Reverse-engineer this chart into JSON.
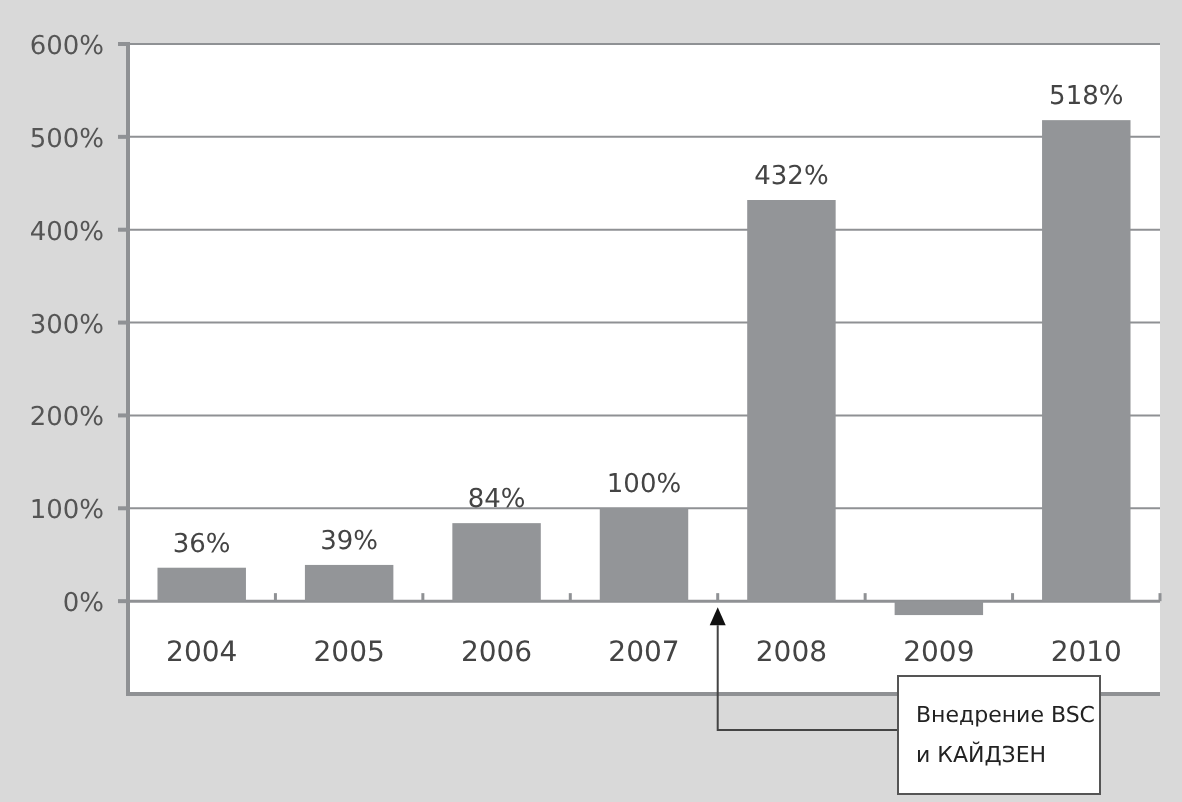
{
  "chart_data": {
    "type": "bar",
    "categories": [
      "2004",
      "2005",
      "2006",
      "2007",
      "2008",
      "2009",
      "2010"
    ],
    "values": [
      36,
      39,
      84,
      100,
      432,
      -15,
      518
    ],
    "value_labels": [
      "36%",
      "39%",
      "84%",
      "100%",
      "432%",
      null,
      "518%"
    ],
    "color": "#939598",
    "ylim": [
      -100,
      600
    ],
    "yticks": [
      {
        "value": 0,
        "label": "0%"
      },
      {
        "value": 100,
        "label": "100%"
      },
      {
        "value": 200,
        "label": "200%"
      },
      {
        "value": 300,
        "label": "300%"
      },
      {
        "value": 400,
        "label": "400%"
      },
      {
        "value": 500,
        "label": "500%"
      },
      {
        "value": 600,
        "label": "600%"
      }
    ],
    "grid": "y",
    "annotations": [
      "Внедрение BSC и КАЙДЗЕН"
    ]
  }
}
